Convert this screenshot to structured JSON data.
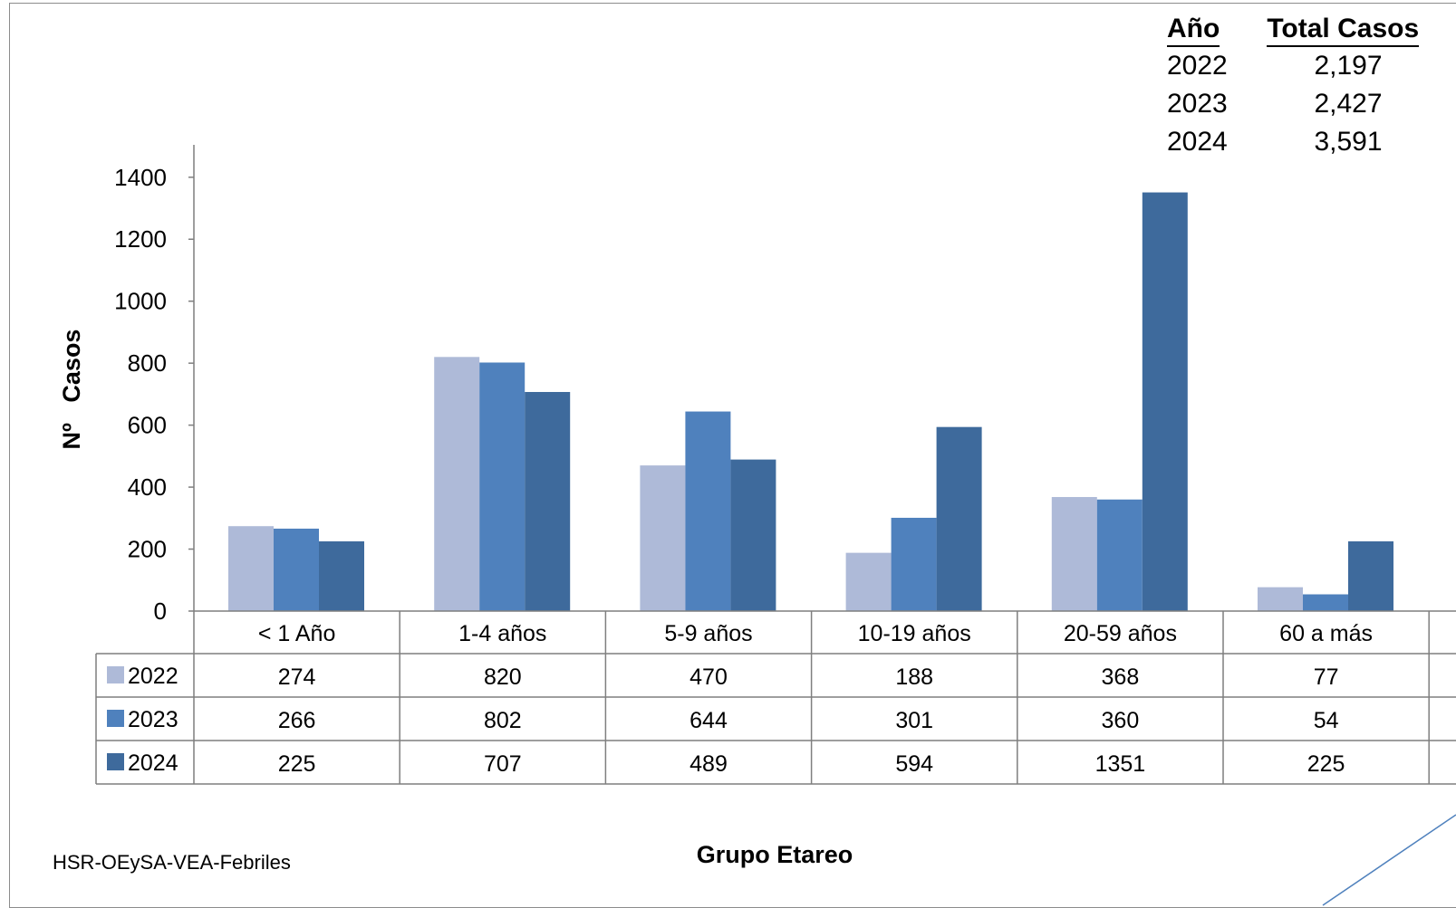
{
  "totals_table": {
    "headers": [
      "Año",
      "Total Casos"
    ],
    "rows": [
      [
        "2022",
        "2,197"
      ],
      [
        "2023",
        "2,427"
      ],
      [
        "2024",
        "3,591"
      ]
    ]
  },
  "source_note": "HSR-OEySA-VEA-Febriles",
  "chart_data": {
    "type": "bar",
    "title": "",
    "xlabel": "Grupo Etareo",
    "ylabel": "Nº   Casos",
    "ylim": [
      0,
      1400
    ],
    "yticks": [
      0,
      200,
      400,
      600,
      800,
      1000,
      1200,
      1400
    ],
    "grid": false,
    "legend_placement": "data-table",
    "categories": [
      "< 1 Año",
      "1-4 años",
      "5-9 años",
      "10-19 años",
      "20-59 años",
      "60 a más"
    ],
    "series": [
      {
        "name": "2022",
        "color": "#aebad8",
        "values": [
          274,
          820,
          470,
          188,
          368,
          77
        ]
      },
      {
        "name": "2023",
        "color": "#4f81bd",
        "values": [
          266,
          802,
          644,
          301,
          360,
          54
        ]
      },
      {
        "name": "2024",
        "color": "#3e6a9c",
        "values": [
          225,
          707,
          489,
          594,
          1351,
          225
        ]
      }
    ]
  }
}
